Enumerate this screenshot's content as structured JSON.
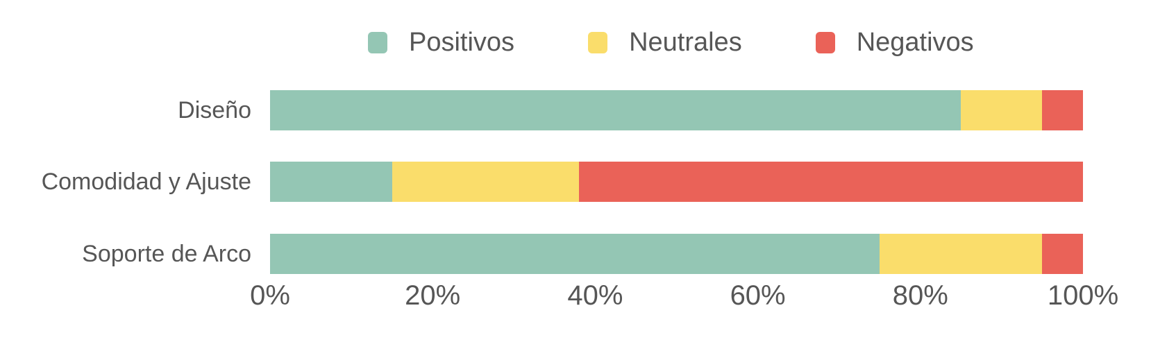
{
  "chart_data": {
    "type": "bar",
    "orientation": "horizontal",
    "stacked": true,
    "unit": "percent",
    "categories": [
      "Diseño",
      "Comodidad y Ajuste",
      "Soporte de Arco"
    ],
    "series": [
      {
        "name": "Positivos",
        "color": "#94c6b4",
        "values": [
          85,
          15,
          75
        ]
      },
      {
        "name": "Neutrales",
        "color": "#fadd6b",
        "values": [
          10,
          23,
          20
        ]
      },
      {
        "name": "Negativos",
        "color": "#ea6258",
        "values": [
          5,
          62,
          5
        ]
      }
    ],
    "x_axis": {
      "range": [
        0,
        100
      ],
      "ticks": [
        "0%",
        "20%",
        "40%",
        "60%",
        "80%",
        "100%"
      ],
      "grid": false
    },
    "legend": {
      "position": "top",
      "items": [
        "Positivos",
        "Neutrales",
        "Negativos"
      ]
    },
    "colors": {
      "positive": "#94c6b4",
      "neutral": "#fadd6b",
      "negative": "#ea6258",
      "text": "#565656",
      "background": "#ffffff"
    }
  }
}
